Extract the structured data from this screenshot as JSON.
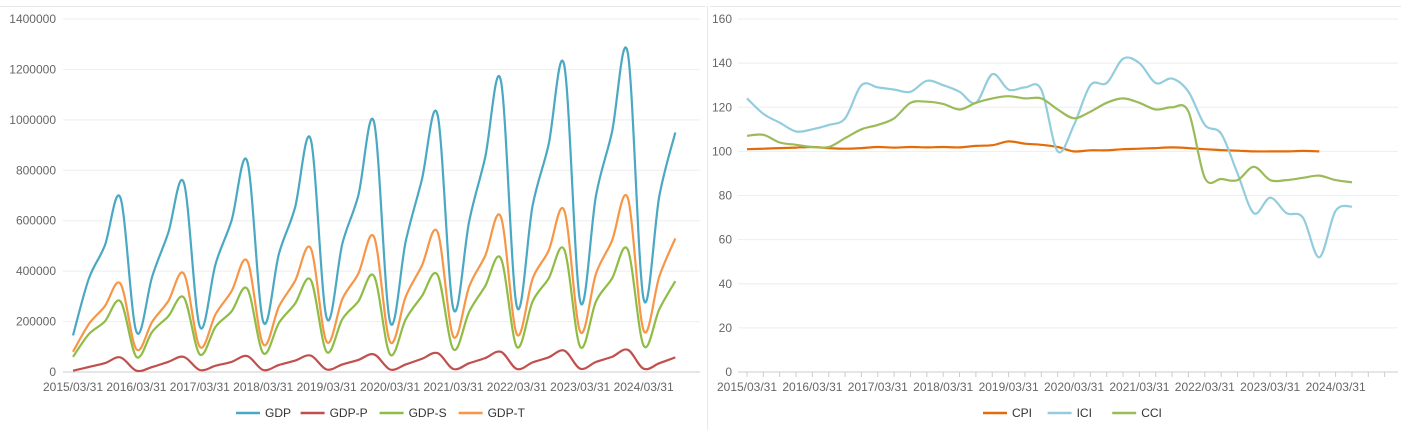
{
  "charts": [
    {
      "id": "gdp",
      "type": "line",
      "x_labels": [
        "2015/03/31",
        "2016/03/31",
        "2017/03/31",
        "2018/03/31",
        "2019/03/31",
        "2020/03/31",
        "2021/03/31",
        "2022/03/31",
        "2023/03/31",
        "2024/03/31"
      ],
      "ylim": [
        0,
        1400000
      ],
      "y_ticks": [
        "0",
        "200000",
        "400000",
        "600000",
        "800000",
        "1000000",
        "1200000",
        "1400000"
      ],
      "grid": true,
      "legend_position": "bottom",
      "series": [
        {
          "name": "GDP",
          "color": "#4aa8c2",
          "values": [
            145000,
            370000,
            500000,
            690000,
            160000,
            380000,
            550000,
            750000,
            180000,
            430000,
            600000,
            835000,
            200000,
            470000,
            650000,
            922000,
            215000,
            510000,
            700000,
            990000,
            200000,
            520000,
            760000,
            1020000,
            250000,
            600000,
            850000,
            1155000,
            260000,
            660000,
            900000,
            1215000,
            280000,
            700000,
            950000,
            1265000,
            290000,
            700000,
            950000
          ]
        },
        {
          "name": "GDP-P",
          "color": "#c0504d",
          "values": [
            5000,
            20000,
            35000,
            58000,
            5000,
            20000,
            40000,
            60000,
            8000,
            25000,
            40000,
            63000,
            8000,
            28000,
            45000,
            65000,
            10000,
            30000,
            48000,
            70000,
            10000,
            30000,
            52000,
            75000,
            12000,
            35000,
            55000,
            80000,
            12000,
            38000,
            58000,
            85000,
            13000,
            40000,
            60000,
            88000,
            13000,
            35000,
            58000
          ]
        },
        {
          "name": "GDP-S",
          "color": "#8fbc45",
          "values": [
            60000,
            150000,
            200000,
            280000,
            60000,
            160000,
            220000,
            295000,
            70000,
            180000,
            240000,
            330000,
            75000,
            195000,
            270000,
            365000,
            80000,
            210000,
            280000,
            380000,
            70000,
            210000,
            300000,
            385000,
            90000,
            240000,
            340000,
            450000,
            100000,
            280000,
            370000,
            485000,
            100000,
            280000,
            370000,
            485000,
            105000,
            250000,
            360000
          ]
        },
        {
          "name": "GDP-T",
          "color": "#f79646",
          "values": [
            80000,
            190000,
            260000,
            350000,
            90000,
            200000,
            280000,
            390000,
            100000,
            230000,
            320000,
            440000,
            110000,
            260000,
            360000,
            490000,
            120000,
            290000,
            390000,
            535000,
            120000,
            300000,
            420000,
            555000,
            140000,
            340000,
            460000,
            615000,
            150000,
            370000,
            480000,
            640000,
            160000,
            390000,
            520000,
            690000,
            165000,
            380000,
            530000
          ]
        }
      ]
    },
    {
      "id": "index",
      "type": "line",
      "x_labels": [
        "2015/03/31",
        "2016/03/31",
        "2017/03/31",
        "2018/03/31",
        "2019/03/31",
        "2020/03/31",
        "2021/03/31",
        "2022/03/31",
        "2023/03/31",
        "2024/03/31"
      ],
      "ylim": [
        0,
        160
      ],
      "y_ticks": [
        "0",
        "20",
        "40",
        "60",
        "80",
        "100",
        "120",
        "140",
        "160"
      ],
      "grid": true,
      "legend_position": "bottom",
      "series": [
        {
          "name": "CPI",
          "color": "#e36c0a",
          "values": [
            [
              0,
              101
            ],
            [
              1,
              101.2
            ],
            [
              2,
              101.5
            ],
            [
              3,
              101.7
            ],
            [
              4,
              102
            ],
            [
              5,
              101.5
            ],
            [
              6,
              101.2
            ],
            [
              7,
              101.5
            ],
            [
              8,
              102
            ],
            [
              9,
              101.7
            ],
            [
              10,
              102
            ],
            [
              11,
              101.8
            ],
            [
              12,
              102
            ],
            [
              13,
              101.8
            ],
            [
              14,
              102.5
            ],
            [
              15,
              102.8
            ],
            [
              16,
              104.5
            ],
            [
              17,
              103.5
            ],
            [
              18,
              103
            ],
            [
              19,
              102
            ],
            [
              20,
              100
            ],
            [
              21,
              100.5
            ],
            [
              22,
              100.5
            ],
            [
              23,
              101
            ],
            [
              24,
              101.2
            ],
            [
              25,
              101.5
            ],
            [
              26,
              101.8
            ],
            [
              27,
              101.5
            ],
            [
              28,
              101
            ],
            [
              29,
              100.6
            ],
            [
              30,
              100.3
            ],
            [
              31,
              100
            ],
            [
              32,
              100
            ],
            [
              33,
              100
            ],
            [
              34,
              100.2
            ],
            [
              35,
              100
            ]
          ]
        },
        {
          "name": "ICI",
          "color": "#93cddd",
          "values": [
            [
              0,
              124
            ],
            [
              1,
              117
            ],
            [
              2,
              113
            ],
            [
              3,
              109
            ],
            [
              4,
              110
            ],
            [
              5,
              112
            ],
            [
              6,
              115
            ],
            [
              7,
              130
            ],
            [
              8,
              129
            ],
            [
              9,
              128
            ],
            [
              10,
              127
            ],
            [
              11,
              132
            ],
            [
              12,
              130
            ],
            [
              13,
              127
            ],
            [
              14,
              122
            ],
            [
              15,
              135
            ],
            [
              16,
              128
            ],
            [
              17,
              129
            ],
            [
              18,
              128
            ],
            [
              19,
              100
            ],
            [
              20,
              112
            ],
            [
              21,
              130
            ],
            [
              22,
              131
            ],
            [
              23,
              142
            ],
            [
              24,
              140
            ],
            [
              25,
              131
            ],
            [
              26,
              133
            ],
            [
              27,
              127
            ],
            [
              28,
              112
            ],
            [
              29,
              108
            ],
            [
              30,
              90
            ],
            [
              31,
              72
            ],
            [
              32,
              79
            ],
            [
              33,
              72
            ],
            [
              34,
              70
            ],
            [
              35,
              52
            ],
            [
              36,
              73
            ],
            [
              37,
              75
            ]
          ]
        },
        {
          "name": "CCI",
          "color": "#9bbb59",
          "values": [
            [
              0,
              107
            ],
            [
              1,
              107.5
            ],
            [
              2,
              104
            ],
            [
              3,
              103
            ],
            [
              4,
              102
            ],
            [
              5,
              102
            ],
            [
              6,
              106
            ],
            [
              7,
              110
            ],
            [
              8,
              112
            ],
            [
              9,
              115
            ],
            [
              10,
              122
            ],
            [
              11,
              122.5
            ],
            [
              12,
              121.5
            ],
            [
              13,
              119
            ],
            [
              14,
              122
            ],
            [
              15,
              124
            ],
            [
              16,
              125
            ],
            [
              17,
              124
            ],
            [
              18,
              124
            ],
            [
              19,
              119
            ],
            [
              20,
              115
            ],
            [
              21,
              118
            ],
            [
              22,
              122
            ],
            [
              23,
              124
            ],
            [
              24,
              122
            ],
            [
              25,
              119
            ],
            [
              26,
              120
            ],
            [
              27,
              118
            ],
            [
              28,
              88
            ],
            [
              29,
              87.5
            ],
            [
              30,
              87
            ],
            [
              31,
              93
            ],
            [
              32,
              87
            ],
            [
              33,
              87
            ],
            [
              34,
              88
            ],
            [
              35,
              89
            ],
            [
              36,
              87
            ],
            [
              37,
              86
            ]
          ]
        }
      ]
    }
  ]
}
